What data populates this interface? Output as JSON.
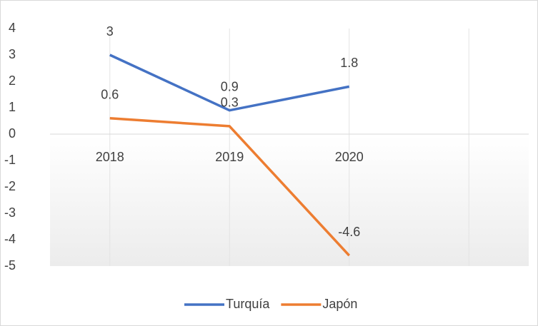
{
  "chart_data": {
    "type": "line",
    "categories": [
      "2018",
      "2019",
      "2020",
      null
    ],
    "series": [
      {
        "name": "Turquía",
        "color": "#4472c4",
        "values": [
          3,
          0.9,
          1.8,
          null
        ]
      },
      {
        "name": "Japón",
        "color": "#ed7d31",
        "values": [
          0.6,
          0.3,
          -4.6,
          null
        ]
      }
    ],
    "ylim": [
      -5,
      4
    ],
    "yticks": [
      -5,
      -4,
      -3,
      -2,
      -1,
      0,
      1,
      2,
      3,
      4
    ],
    "grid": true,
    "legend": "bottom"
  }
}
